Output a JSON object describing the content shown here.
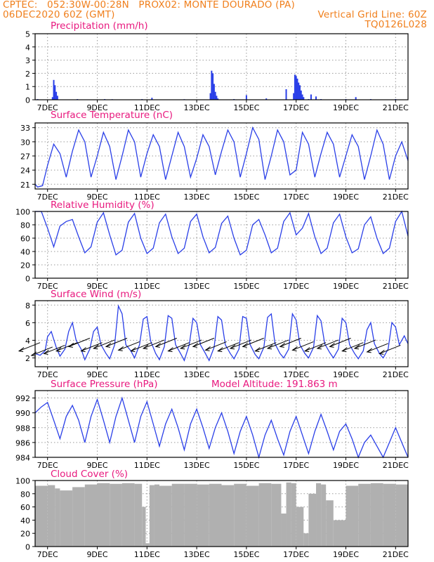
{
  "header": {
    "station_line": "CPTEC:   052:30W-00:28N   PROX02: MONTE DOURADO (PA)",
    "run_line": "06DEC2020 60Z (GMT)",
    "grid_line": "Vertical Grid Line: 60Z",
    "product_code": "TQ0126L028",
    "text_color": "#f07f1c"
  },
  "colors": {
    "title": "#e8187e",
    "series": "#2a3fe8",
    "cloud": "#b0b0b0",
    "arrow": "#000000",
    "axis": "#000000",
    "grid": "#9a9a9a"
  },
  "x_axis": {
    "ticks": [
      "7DEC",
      "9DEC",
      "11DEC",
      "13DEC",
      "15DEC",
      "17DEC",
      "19DEC",
      "21DEC"
    ],
    "range_days": [
      6.5,
      21.5
    ],
    "tick_days": [
      7,
      9,
      11,
      13,
      15,
      17,
      19,
      21
    ]
  },
  "chart_data": [
    {
      "type": "bar",
      "title": "Precipitation (mm/h)",
      "ylim": [
        0,
        5
      ],
      "yticks": [
        "0",
        "1",
        "2",
        "3",
        "4",
        "5"
      ],
      "series": [
        {
          "x": [
            6.6,
            7.2,
            7.25,
            7.3,
            7.35,
            7.4,
            8.2,
            9.3,
            9.6,
            10.8,
            11.2,
            12.5,
            13.55,
            13.6,
            13.65,
            13.7,
            13.75,
            13.8,
            13.85,
            14.5,
            15.0,
            15.8,
            16.6,
            16.9,
            16.95,
            17.0,
            17.05,
            17.1,
            17.15,
            17.2,
            17.25,
            17.3,
            17.5,
            17.6,
            17.8,
            18.0,
            19.0,
            19.4,
            20.0,
            21.0
          ],
          "values": [
            0.05,
            0.2,
            1.5,
            1.1,
            0.6,
            0.3,
            0.05,
            0.05,
            0.04,
            0.05,
            0.15,
            0.04,
            0.5,
            2.2,
            2.0,
            1.2,
            0.6,
            0.3,
            0.1,
            0.05,
            0.35,
            0.1,
            0.8,
            0.5,
            1.9,
            1.8,
            1.6,
            1.3,
            1.1,
            0.7,
            0.4,
            0.2,
            0.05,
            0.4,
            0.25,
            0.05,
            0.05,
            0.2,
            0.05,
            0.05
          ]
        }
      ]
    },
    {
      "type": "line",
      "title": "Surface Temperature (nC)",
      "ylim": [
        20,
        34
      ],
      "yticks": [
        "21",
        "24",
        "27",
        "30",
        "33"
      ],
      "ytick_values": [
        21,
        24,
        27,
        30,
        33
      ],
      "series": [
        {
          "x": [
            6.5,
            6.6,
            6.8,
            7.0,
            7.25,
            7.5,
            7.75,
            8.0,
            8.25,
            8.5,
            8.75,
            9.0,
            9.25,
            9.5,
            9.75,
            10.0,
            10.25,
            10.5,
            10.75,
            11.0,
            11.25,
            11.5,
            11.75,
            12.0,
            12.25,
            12.5,
            12.75,
            13.0,
            13.25,
            13.5,
            13.75,
            14.0,
            14.25,
            14.5,
            14.75,
            15.0,
            15.25,
            15.5,
            15.75,
            16.0,
            16.25,
            16.5,
            16.75,
            17.0,
            17.25,
            17.5,
            17.75,
            18.0,
            18.25,
            18.5,
            18.75,
            19.0,
            19.25,
            19.5,
            19.75,
            20.0,
            20.25,
            20.5,
            20.75,
            21.0,
            21.25,
            21.5
          ],
          "values": [
            21.0,
            20.4,
            20.7,
            25.0,
            29.5,
            27.5,
            22.5,
            28.0,
            32.5,
            30.0,
            22.5,
            27.0,
            32.0,
            29.0,
            22.0,
            27.0,
            32.5,
            30.0,
            22.5,
            27.5,
            31.5,
            29.0,
            22.0,
            27.0,
            32.0,
            29.0,
            22.5,
            26.5,
            31.5,
            29.0,
            23.0,
            28.0,
            32.5,
            30.0,
            22.5,
            27.5,
            33.0,
            30.5,
            22.0,
            27.0,
            32.5,
            30.0,
            23.0,
            24.0,
            32.0,
            29.5,
            22.5,
            27.5,
            32.0,
            29.5,
            22.5,
            27.0,
            31.5,
            29.0,
            22.0,
            27.0,
            32.5,
            29.5,
            22.0,
            27.0,
            30.0,
            26.0
          ]
        }
      ]
    },
    {
      "type": "line",
      "title": "Relative Humidity (%)",
      "ylim": [
        0,
        100
      ],
      "yticks": [
        "0",
        "20",
        "40",
        "60",
        "80",
        "100"
      ],
      "ytick_values": [
        0,
        20,
        40,
        60,
        80,
        100
      ],
      "series": [
        {
          "x": [
            6.5,
            6.75,
            7.0,
            7.25,
            7.5,
            7.75,
            8.0,
            8.25,
            8.5,
            8.75,
            9.0,
            9.25,
            9.5,
            9.75,
            10.0,
            10.25,
            10.5,
            10.75,
            11.0,
            11.25,
            11.5,
            11.75,
            12.0,
            12.25,
            12.5,
            12.75,
            13.0,
            13.25,
            13.5,
            13.75,
            14.0,
            14.25,
            14.5,
            14.75,
            15.0,
            15.25,
            15.5,
            15.75,
            16.0,
            16.25,
            16.5,
            16.75,
            17.0,
            17.25,
            17.5,
            17.75,
            18.0,
            18.25,
            18.5,
            18.75,
            19.0,
            19.25,
            19.5,
            19.75,
            20.0,
            20.25,
            20.5,
            20.75,
            21.0,
            21.25,
            21.5
          ],
          "values": [
            100,
            100,
            75,
            47,
            78,
            85,
            88,
            62,
            38,
            47,
            84,
            98,
            65,
            35,
            42,
            84,
            97,
            60,
            37,
            45,
            83,
            96,
            62,
            37,
            45,
            85,
            96,
            62,
            38,
            46,
            82,
            93,
            60,
            35,
            42,
            80,
            88,
            65,
            38,
            45,
            85,
            98,
            65,
            75,
            97,
            62,
            37,
            45,
            83,
            96,
            62,
            38,
            44,
            80,
            92,
            60,
            37,
            45,
            85,
            100,
            63
          ]
        }
      ]
    },
    {
      "type": "line",
      "title": "Surface Wind (m/s)",
      "ylim": [
        1,
        8.5
      ],
      "yticks": [
        "2",
        "4",
        "6",
        "8"
      ],
      "ytick_values": [
        2,
        4,
        6,
        8
      ],
      "series": [
        {
          "x": [
            6.5,
            6.7,
            6.9,
            7.0,
            7.15,
            7.35,
            7.5,
            7.7,
            7.85,
            8.0,
            8.15,
            8.35,
            8.5,
            8.7,
            8.85,
            9.0,
            9.15,
            9.35,
            9.5,
            9.7,
            9.85,
            10.0,
            10.15,
            10.35,
            10.5,
            10.7,
            10.85,
            11.0,
            11.15,
            11.35,
            11.5,
            11.7,
            11.85,
            12.0,
            12.15,
            12.35,
            12.5,
            12.7,
            12.85,
            13.0,
            13.15,
            13.35,
            13.5,
            13.7,
            13.85,
            14.0,
            14.15,
            14.35,
            14.5,
            14.7,
            14.85,
            15.0,
            15.15,
            15.35,
            15.5,
            15.7,
            15.85,
            16.0,
            16.15,
            16.35,
            16.5,
            16.7,
            16.85,
            17.0,
            17.15,
            17.35,
            17.5,
            17.7,
            17.85,
            18.0,
            18.15,
            18.35,
            18.5,
            18.7,
            18.85,
            19.0,
            19.15,
            19.35,
            19.5,
            19.7,
            19.85,
            20.0,
            20.15,
            20.35,
            20.5,
            20.7,
            20.85,
            21.0,
            21.15,
            21.35,
            21.5
          ],
          "values": [
            2.5,
            2.3,
            2.8,
            4.4,
            5.0,
            3.2,
            2.2,
            3.0,
            5.0,
            6.0,
            4.0,
            3.0,
            1.8,
            3.0,
            5.0,
            5.5,
            3.5,
            2.5,
            1.9,
            3.5,
            7.9,
            7.0,
            3.5,
            2.8,
            2.0,
            3.5,
            6.4,
            6.7,
            3.9,
            2.5,
            1.8,
            3.3,
            6.8,
            6.5,
            3.5,
            2.5,
            1.7,
            3.5,
            6.5,
            6.0,
            3.5,
            2.5,
            1.7,
            3.2,
            6.7,
            6.3,
            3.5,
            2.5,
            1.9,
            3.0,
            6.7,
            6.5,
            3.5,
            2.4,
            1.9,
            3.2,
            6.6,
            7.0,
            3.6,
            2.5,
            2.0,
            3.0,
            7.0,
            6.3,
            3.5,
            2.5,
            2.0,
            3.2,
            6.8,
            6.2,
            3.6,
            2.6,
            2.0,
            3.0,
            6.5,
            6.0,
            3.5,
            2.5,
            1.9,
            2.8,
            5.2,
            6.0,
            3.6,
            2.5,
            2.0,
            3.0,
            6.0,
            5.5,
            3.5,
            4.5,
            3.6
          ]
        }
      ],
      "wind_arrows": {
        "direction": "toward lower-left",
        "x": [
          6.7,
          7.2,
          7.7,
          8.2,
          8.7,
          9.2,
          9.7,
          10.2,
          10.7,
          11.2,
          11.7,
          12.2,
          12.7,
          13.2,
          13.7,
          14.2,
          14.7,
          15.2,
          15.7,
          16.2,
          16.7,
          17.2,
          17.7,
          18.2,
          18.7,
          19.2,
          19.7,
          20.2,
          20.7,
          21.2
        ],
        "speed": [
          3.5,
          3.0,
          3.2,
          3.5,
          4.0,
          3.5,
          3.8,
          4.0,
          3.6,
          3.5,
          3.8,
          4.0,
          3.5,
          3.8,
          4.0,
          3.6,
          3.5,
          3.8,
          4.0,
          3.5,
          3.8,
          4.0,
          3.6,
          3.5,
          3.8,
          4.0,
          3.5,
          3.8,
          3.4,
          3.2
        ]
      }
    },
    {
      "type": "line",
      "title": "Surface Pressure (hPa)",
      "annotation": "Model Altitude: 191.863 m",
      "ylim": [
        984,
        993
      ],
      "yticks": [
        "984",
        "986",
        "988",
        "990",
        "992"
      ],
      "ytick_values": [
        984,
        986,
        988,
        990,
        992
      ],
      "series": [
        {
          "x": [
            6.5,
            6.75,
            7.0,
            7.25,
            7.5,
            7.75,
            8.0,
            8.25,
            8.5,
            8.75,
            9.0,
            9.25,
            9.5,
            9.75,
            10.0,
            10.25,
            10.5,
            10.75,
            11.0,
            11.25,
            11.5,
            11.75,
            12.0,
            12.25,
            12.5,
            12.75,
            13.0,
            13.25,
            13.5,
            13.75,
            14.0,
            14.25,
            14.5,
            14.75,
            15.0,
            15.25,
            15.5,
            15.75,
            16.0,
            16.25,
            16.5,
            16.75,
            17.0,
            17.25,
            17.5,
            17.75,
            18.0,
            18.25,
            18.5,
            18.75,
            19.0,
            19.25,
            19.5,
            19.75,
            20.0,
            20.25,
            20.5,
            20.75,
            21.0,
            21.25,
            21.5
          ],
          "values": [
            990.0,
            990.8,
            991.4,
            989.0,
            986.5,
            989.5,
            991.0,
            989.0,
            986.0,
            989.5,
            991.8,
            989.0,
            986.0,
            989.5,
            992.0,
            989.0,
            986.0,
            989.5,
            991.5,
            988.5,
            985.5,
            988.5,
            990.5,
            988.0,
            985.0,
            988.5,
            990.5,
            988.0,
            985.2,
            988.0,
            990.0,
            987.5,
            984.5,
            987.5,
            989.5,
            987.0,
            984.0,
            987.0,
            989.0,
            986.5,
            984.3,
            987.5,
            989.5,
            987.0,
            984.5,
            987.5,
            989.8,
            987.5,
            985.0,
            987.5,
            988.5,
            986.5,
            984.0,
            986.0,
            987.0,
            985.5,
            984.0,
            986.0,
            988.0,
            986.0,
            984.0
          ]
        }
      ]
    },
    {
      "type": "bar",
      "title": "Cloud Cover (%)",
      "ylim": [
        0,
        100
      ],
      "yticks": [
        "0",
        "20",
        "40",
        "60",
        "80",
        "100"
      ],
      "ytick_values": [
        0,
        20,
        40,
        60,
        80,
        100
      ],
      "series": [
        {
          "x": [
            6.5,
            7.0,
            7.3,
            7.5,
            8.0,
            8.5,
            9.0,
            9.5,
            10.0,
            10.5,
            10.8,
            10.95,
            11.1,
            11.3,
            11.5,
            12.0,
            12.5,
            13.0,
            13.5,
            14.0,
            14.5,
            15.0,
            15.5,
            16.0,
            16.4,
            16.6,
            16.8,
            17.0,
            17.3,
            17.5,
            17.8,
            18.0,
            18.2,
            18.5,
            19.0,
            19.5,
            20.0,
            20.5,
            21.0,
            21.5
          ],
          "values": [
            92,
            93,
            88,
            85,
            90,
            94,
            96,
            95,
            96,
            95,
            60,
            5,
            93,
            94,
            92,
            95,
            95,
            94,
            95,
            93,
            95,
            92,
            96,
            95,
            50,
            97,
            96,
            60,
            20,
            80,
            96,
            94,
            70,
            40,
            92,
            95,
            96,
            95,
            94,
            93
          ]
        }
      ]
    }
  ]
}
